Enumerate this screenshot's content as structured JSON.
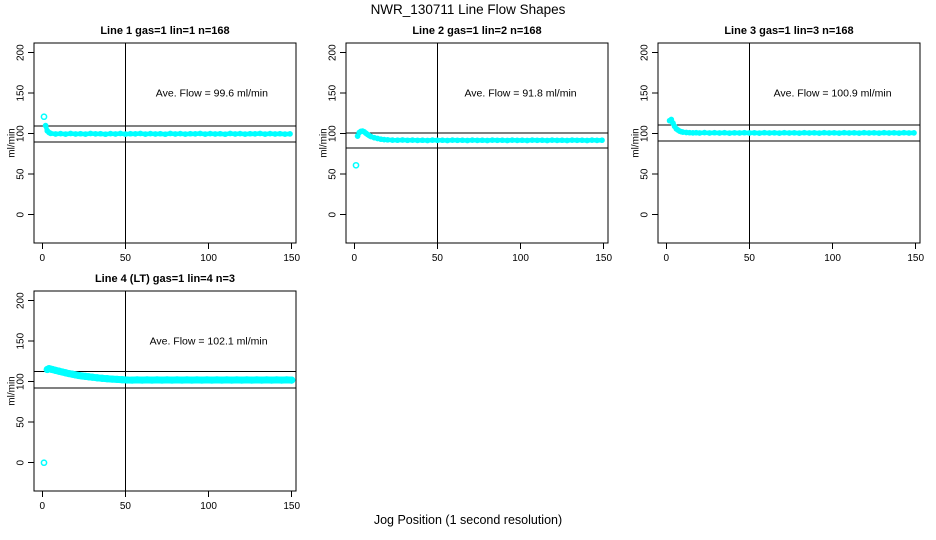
{
  "chart_data": {
    "type": "scatter",
    "title": "NWR_130711  Line Flow Shapes",
    "xlabel": "Jog Position (1 second resolution)",
    "ylabel": "ml/min",
    "point_color": "#00FFFF",
    "axis_color": "#000000",
    "grid": false,
    "legend": null,
    "x_ticks": [
      0,
      50,
      100,
      150
    ],
    "y_ticks": [
      0,
      50,
      100,
      150,
      200
    ],
    "x_range": [
      -5,
      152.6
    ],
    "y_range": [
      -35,
      212
    ],
    "panels": [
      {
        "title": "Line 1 gas=1 lin=1 n=168",
        "ave_flow_ml_min": 99.6,
        "annotation": "Ave. Flow =  99.6  ml/min",
        "annotation_xy": [
          102,
          150
        ],
        "vline_x": 50,
        "ref_lines": [
          109.6,
          89.6
        ],
        "band_width": 4.5,
        "point_radius": 2.2,
        "outliers": [
          [
            1,
            121
          ]
        ],
        "points": [
          [
            2,
            110
          ],
          [
            3,
            103.5
          ],
          [
            4,
            101.5
          ],
          [
            5,
            100.3
          ],
          [
            8,
            99.6
          ],
          [
            11,
            100.1
          ],
          [
            14,
            99.5
          ],
          [
            17,
            100.2
          ],
          [
            20,
            99.6
          ],
          [
            23,
            100
          ],
          [
            26,
            99.5
          ],
          [
            29,
            100.2
          ],
          [
            32,
            99.7
          ],
          [
            35,
            100
          ],
          [
            38,
            99.4
          ],
          [
            41,
            100.1
          ],
          [
            44,
            99.6
          ],
          [
            47,
            100.2
          ],
          [
            50,
            99.5
          ],
          [
            53,
            100
          ],
          [
            56,
            99.7
          ],
          [
            59,
            100.2
          ],
          [
            62,
            99.5
          ],
          [
            65,
            100.1
          ],
          [
            68,
            99.6
          ],
          [
            71,
            100
          ],
          [
            74,
            99.4
          ],
          [
            77,
            100.2
          ],
          [
            80,
            99.6
          ],
          [
            83,
            100.1
          ],
          [
            86,
            99.5
          ],
          [
            89,
            100
          ],
          [
            92,
            99.7
          ],
          [
            95,
            100.2
          ],
          [
            98,
            99.5
          ],
          [
            101,
            100.1
          ],
          [
            104,
            99.6
          ],
          [
            107,
            100
          ],
          [
            110,
            99.4
          ],
          [
            113,
            100.2
          ],
          [
            116,
            99.6
          ],
          [
            119,
            100.1
          ],
          [
            122,
            99.5
          ],
          [
            125,
            100
          ],
          [
            128,
            99.7
          ],
          [
            131,
            100.2
          ],
          [
            134,
            99.5
          ],
          [
            137,
            100.1
          ],
          [
            140,
            99.6
          ],
          [
            143,
            100
          ],
          [
            146,
            99.5
          ],
          [
            149,
            99.8
          ]
        ]
      },
      {
        "title": "Line 2 gas=1 lin=2 n=168",
        "ave_flow_ml_min": 91.8,
        "annotation": "Ave. Flow =  91.8  ml/min",
        "annotation_xy": [
          100,
          150
        ],
        "vline_x": 50,
        "ref_lines": [
          101.0,
          82.6
        ],
        "band_width": 4.5,
        "point_radius": 2.2,
        "outliers": [
          [
            1,
            61
          ]
        ],
        "points": [
          [
            2,
            97
          ],
          [
            3,
            101.5
          ],
          [
            4,
            103
          ],
          [
            5,
            103.2
          ],
          [
            6,
            102.2
          ],
          [
            7,
            100.6
          ],
          [
            8,
            99
          ],
          [
            9,
            97.6
          ],
          [
            10,
            96.5
          ],
          [
            12,
            95
          ],
          [
            14,
            94
          ],
          [
            16,
            93.2
          ],
          [
            18,
            92.7
          ],
          [
            20,
            92.4
          ],
          [
            23,
            92.1
          ],
          [
            26,
            92
          ],
          [
            29,
            92.2
          ],
          [
            32,
            91.8
          ],
          [
            35,
            92.1
          ],
          [
            38,
            91.7
          ],
          [
            41,
            92
          ],
          [
            44,
            91.6
          ],
          [
            47,
            92.1
          ],
          [
            50,
            91.8
          ],
          [
            53,
            92
          ],
          [
            56,
            91.6
          ],
          [
            59,
            92.1
          ],
          [
            62,
            91.8
          ],
          [
            65,
            92
          ],
          [
            68,
            91.6
          ],
          [
            71,
            92.1
          ],
          [
            74,
            91.7
          ],
          [
            77,
            92
          ],
          [
            80,
            91.6
          ],
          [
            83,
            92.1
          ],
          [
            86,
            91.8
          ],
          [
            89,
            92
          ],
          [
            92,
            91.6
          ],
          [
            95,
            92.1
          ],
          [
            98,
            91.7
          ],
          [
            101,
            92
          ],
          [
            104,
            91.6
          ],
          [
            107,
            92.1
          ],
          [
            110,
            91.8
          ],
          [
            113,
            92
          ],
          [
            116,
            91.6
          ],
          [
            119,
            92.1
          ],
          [
            122,
            91.7
          ],
          [
            125,
            92
          ],
          [
            128,
            91.6
          ],
          [
            131,
            92.1
          ],
          [
            134,
            91.8
          ],
          [
            137,
            92
          ],
          [
            140,
            91.6
          ],
          [
            143,
            92.1
          ],
          [
            146,
            91.7
          ],
          [
            149,
            91.9
          ]
        ]
      },
      {
        "title": "Line 3 gas=1 lin=3 n=168",
        "ave_flow_ml_min": 100.9,
        "annotation": "Ave. Flow =  100.9  ml/min",
        "annotation_xy": [
          100,
          150
        ],
        "vline_x": 50,
        "ref_lines": [
          111.0,
          90.8
        ],
        "band_width": 4.5,
        "point_radius": 2.2,
        "outliers": [],
        "points": [
          [
            2,
            116
          ],
          [
            3,
            117.5
          ],
          [
            4,
            113
          ],
          [
            5,
            109
          ],
          [
            6,
            106
          ],
          [
            7,
            104.5
          ],
          [
            8,
            103.2
          ],
          [
            9,
            102.5
          ],
          [
            10,
            102
          ],
          [
            12,
            101.5
          ],
          [
            14,
            101.2
          ],
          [
            16,
            101
          ],
          [
            18,
            101.2
          ],
          [
            20,
            100.9
          ],
          [
            23,
            101.3
          ],
          [
            26,
            100.8
          ],
          [
            29,
            101.2
          ],
          [
            32,
            100.8
          ],
          [
            35,
            101.2
          ],
          [
            38,
            100.7
          ],
          [
            41,
            101.1
          ],
          [
            44,
            100.8
          ],
          [
            47,
            101.2
          ],
          [
            50,
            100.8
          ],
          [
            53,
            101.1
          ],
          [
            56,
            100.7
          ],
          [
            59,
            101.2
          ],
          [
            62,
            100.9
          ],
          [
            65,
            101.1
          ],
          [
            68,
            100.7
          ],
          [
            71,
            101.2
          ],
          [
            74,
            100.8
          ],
          [
            77,
            101.1
          ],
          [
            80,
            100.7
          ],
          [
            83,
            101.2
          ],
          [
            86,
            100.9
          ],
          [
            89,
            101.1
          ],
          [
            92,
            100.7
          ],
          [
            95,
            101.2
          ],
          [
            98,
            100.8
          ],
          [
            101,
            101.1
          ],
          [
            104,
            100.7
          ],
          [
            107,
            101.2
          ],
          [
            110,
            100.9
          ],
          [
            113,
            101.1
          ],
          [
            116,
            100.7
          ],
          [
            119,
            101.2
          ],
          [
            122,
            100.8
          ],
          [
            125,
            101.1
          ],
          [
            128,
            100.7
          ],
          [
            131,
            101.2
          ],
          [
            134,
            100.9
          ],
          [
            137,
            101.1
          ],
          [
            140,
            100.7
          ],
          [
            143,
            101.2
          ],
          [
            146,
            100.8
          ],
          [
            149,
            101
          ]
        ]
      },
      {
        "title": "Line 4 (LT) gas=1 lin=4 n=3",
        "ave_flow_ml_min": 102.1,
        "annotation": "Ave. Flow =  102.1  ml/min",
        "annotation_xy": [
          100,
          150
        ],
        "vline_x": 50,
        "ref_lines": [
          112.3,
          91.9
        ],
        "band_width": 7,
        "point_radius": 3,
        "outliers": [
          [
            1,
            0
          ]
        ],
        "points": [
          [
            3,
            115
          ],
          [
            4,
            116
          ],
          [
            5,
            115.5
          ],
          [
            6,
            115
          ],
          [
            8,
            114
          ],
          [
            10,
            113
          ],
          [
            12,
            112
          ],
          [
            14,
            111
          ],
          [
            16,
            110
          ],
          [
            18,
            109.2
          ],
          [
            20,
            108.4
          ],
          [
            22,
            107.7
          ],
          [
            24,
            107
          ],
          [
            26,
            106.5
          ],
          [
            28,
            106
          ],
          [
            30,
            105.5
          ],
          [
            33,
            104.8
          ],
          [
            36,
            104.2
          ],
          [
            39,
            103.7
          ],
          [
            42,
            103.2
          ],
          [
            45,
            102.8
          ],
          [
            48,
            102.4
          ],
          [
            51,
            102.1
          ],
          [
            54,
            101.9
          ],
          [
            57,
            102.2
          ],
          [
            60,
            101.9
          ],
          [
            63,
            102.2
          ],
          [
            66,
            101.9
          ],
          [
            69,
            102.2
          ],
          [
            72,
            101.9
          ],
          [
            75,
            102.2
          ],
          [
            78,
            101.9
          ],
          [
            81,
            102.2
          ],
          [
            84,
            101.9
          ],
          [
            87,
            102.2
          ],
          [
            90,
            101.9
          ],
          [
            93,
            102.2
          ],
          [
            96,
            101.9
          ],
          [
            99,
            102.2
          ],
          [
            102,
            101.9
          ],
          [
            105,
            102.2
          ],
          [
            108,
            101.9
          ],
          [
            111,
            102.2
          ],
          [
            114,
            101.9
          ],
          [
            117,
            102.2
          ],
          [
            120,
            101.9
          ],
          [
            123,
            102.2
          ],
          [
            126,
            101.9
          ],
          [
            129,
            102.2
          ],
          [
            132,
            101.9
          ],
          [
            135,
            102.2
          ],
          [
            138,
            101.9
          ],
          [
            141,
            102.2
          ],
          [
            144,
            101.9
          ],
          [
            147,
            102.2
          ],
          [
            150,
            102
          ]
        ]
      }
    ]
  }
}
